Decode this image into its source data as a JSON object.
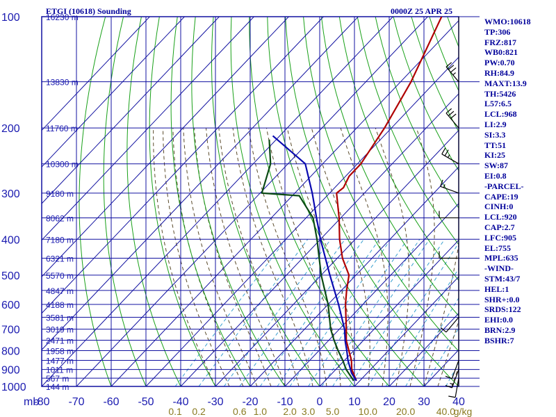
{
  "header": {
    "station_title": "ETGI (10618) Sounding",
    "time_label": "0000Z 25 APR 25"
  },
  "colors": {
    "frame_blue": "#1010a0",
    "dry_adiabat_green": "#18a018",
    "moist_adiabat_brown": "#5a4a2a",
    "mixing_ratio_cyan": "#3aa0d0",
    "temperature_red": "#b00000",
    "dewpoint_green": "#0a4a14",
    "parcel_blue": "#0a0ab0",
    "label_blue": "#1a1ab0",
    "mixing_label_olive": "#8a7a20"
  },
  "sidebar": {
    "items": [
      "WMO:10618",
      "TP:306",
      "FRZ:817",
      "WB0:821",
      "PW:0.70",
      "RH:84.9",
      "MAXT:13.9",
      "TH:5426",
      "L57:6.5",
      "LCL:968",
      "LI:2.9",
      "SI:3.3",
      "TT:51",
      "KI:25",
      "SW:87",
      "EI:0.8",
      "-PARCEL-",
      "CAPE:19",
      "CINH:0",
      "LCL:920",
      "CAP:2.7",
      "LFC:905",
      "EL:755",
      "MPL:635",
      "-WIND-",
      "STM:43/7",
      "HEL:1",
      "SHR+:0.0",
      "SRDS:122",
      "EHI:0.0",
      "BRN:2.9",
      "BSHR:7"
    ]
  },
  "chart_data": {
    "type": "line",
    "title": "ETGI (10618) Sounding",
    "subtitle": "0000Z 25 APR 25",
    "xlabel": "",
    "ylabel": "mb",
    "y_scale": "log-pressure (inverted)",
    "xlim": [
      -80,
      10
    ],
    "ylim": [
      1000,
      100
    ],
    "x_ticks": [
      -80,
      -70,
      -60,
      -50,
      -40,
      -30,
      -20,
      -10,
      0,
      10,
      20,
      30,
      40
    ],
    "x_tick_labels": [
      "-80",
      "-70",
      "-60",
      "-50",
      "-40",
      "-30",
      "-20",
      "-10",
      "0",
      "10",
      "20",
      "30",
      "40"
    ],
    "y_ticks": [
      100,
      200,
      300,
      400,
      500,
      600,
      700,
      800,
      900,
      1000
    ],
    "y_tick_labels": [
      "100",
      "200",
      "300",
      "400",
      "500",
      "600",
      "700",
      "800",
      "900",
      "1000"
    ],
    "y_unit_label": "mb",
    "height_labels": [
      {
        "p": 100,
        "label": "16230 m"
      },
      {
        "p": 150,
        "label": "13830 m"
      },
      {
        "p": 200,
        "label": "11760 m"
      },
      {
        "p": 250,
        "label": "10300 m"
      },
      {
        "p": 300,
        "label": "9180 m"
      },
      {
        "p": 350,
        "label": "8062 m"
      },
      {
        "p": 400,
        "label": "7180 m"
      },
      {
        "p": 450,
        "label": "6321 m"
      },
      {
        "p": 500,
        "label": "5570 m"
      },
      {
        "p": 550,
        "label": "4847 m"
      },
      {
        "p": 600,
        "label": "4188 m"
      },
      {
        "p": 650,
        "label": "3581 m"
      },
      {
        "p": 700,
        "label": "3019 m"
      },
      {
        "p": 750,
        "label": "2471 m"
      },
      {
        "p": 800,
        "label": "1958 m"
      },
      {
        "p": 850,
        "label": "1477 m"
      },
      {
        "p": 900,
        "label": "1011 m"
      },
      {
        "p": 950,
        "label": "567 m"
      },
      {
        "p": 1000,
        "label": "144 m"
      }
    ],
    "mixing_ratio_labels": [
      {
        "w": 0.1,
        "label": "0.1"
      },
      {
        "w": 0.2,
        "label": "0.2"
      },
      {
        "w": 0.6,
        "label": "0.6"
      },
      {
        "w": 1.0,
        "label": "1.0"
      },
      {
        "w": 2.0,
        "label": "2.0"
      },
      {
        "w": 3.0,
        "label": "3.0"
      },
      {
        "w": 5.0,
        "label": "5.0"
      },
      {
        "w": 10.0,
        "label": "10.0"
      },
      {
        "w": 20.0,
        "label": "20.0"
      },
      {
        "w": 40.0,
        "label": "40.0"
      }
    ],
    "mixing_ratio_unit": "g/kg",
    "grid": true,
    "series": [
      {
        "name": "",
        "role": "temperature",
        "points": [
          {
            "p": 965,
            "t": 9.0
          },
          {
            "p": 900,
            "t": 4.6
          },
          {
            "p": 850,
            "t": 2.0
          },
          {
            "p": 800,
            "t": -1.4
          },
          {
            "p": 750,
            "t": -5.0
          },
          {
            "p": 700,
            "t": -8.0
          },
          {
            "p": 600,
            "t": -15.0
          },
          {
            "p": 550,
            "t": -18.5
          },
          {
            "p": 500,
            "t": -22.0
          },
          {
            "p": 450,
            "t": -28.5
          },
          {
            "p": 400,
            "t": -34.5
          },
          {
            "p": 350,
            "t": -40.5
          },
          {
            "p": 300,
            "t": -48.0
          },
          {
            "p": 290,
            "t": -47.5
          },
          {
            "p": 270,
            "t": -49.0
          },
          {
            "p": 250,
            "t": -49.0
          },
          {
            "p": 200,
            "t": -52.0
          },
          {
            "p": 150,
            "t": -57.0
          },
          {
            "p": 100,
            "t": -66.0
          }
        ]
      },
      {
        "name": "",
        "role": "dewpoint",
        "points": [
          {
            "p": 965,
            "t": 8.2
          },
          {
            "p": 900,
            "t": 3.0
          },
          {
            "p": 850,
            "t": -0.5
          },
          {
            "p": 800,
            "t": -4.5
          },
          {
            "p": 750,
            "t": -8.5
          },
          {
            "p": 700,
            "t": -12.5
          },
          {
            "p": 600,
            "t": -20.0
          },
          {
            "p": 500,
            "t": -30.0
          },
          {
            "p": 400,
            "t": -41.0
          },
          {
            "p": 350,
            "t": -48.0
          },
          {
            "p": 305,
            "t": -58.0
          },
          {
            "p": 300,
            "t": -69.5
          },
          {
            "p": 250,
            "t": -75.0
          },
          {
            "p": 215,
            "t": -82.0
          }
        ]
      },
      {
        "name": "",
        "role": "parcel",
        "points": [
          {
            "p": 965,
            "t": 9.0
          },
          {
            "p": 920,
            "t": 5.5
          },
          {
            "p": 850,
            "t": 1.0
          },
          {
            "p": 800,
            "t": -2.0
          },
          {
            "p": 755,
            "t": -5.0
          },
          {
            "p": 700,
            "t": -8.5
          },
          {
            "p": 600,
            "t": -17.0
          },
          {
            "p": 500,
            "t": -27.5
          },
          {
            "p": 400,
            "t": -40.0
          },
          {
            "p": 350,
            "t": -47.0
          },
          {
            "p": 300,
            "t": -55.0
          },
          {
            "p": 250,
            "t": -65.0
          },
          {
            "p": 210,
            "t": -82.0
          }
        ]
      }
    ],
    "wind_barbs": [
      {
        "p": 150,
        "dir": 320,
        "kt": 35
      },
      {
        "p": 200,
        "dir": 320,
        "kt": 30
      },
      {
        "p": 250,
        "dir": 300,
        "kt": 25
      },
      {
        "p": 300,
        "dir": 290,
        "kt": 15
      },
      {
        "p": 350,
        "dir": 270,
        "kt": 10
      },
      {
        "p": 450,
        "dir": 270,
        "kt": 10
      },
      {
        "p": 650,
        "dir": 220,
        "kt": 10
      },
      {
        "p": 850,
        "dir": 200,
        "kt": 10
      },
      {
        "p": 900,
        "dir": 200,
        "kt": 15
      },
      {
        "p": 950,
        "dir": 190,
        "kt": 10
      }
    ]
  }
}
